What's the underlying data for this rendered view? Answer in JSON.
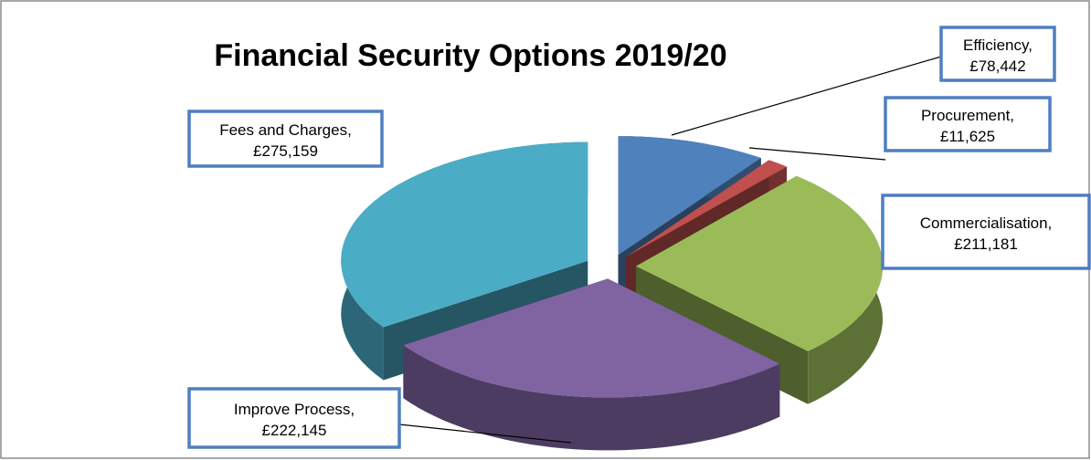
{
  "chart_data": {
    "type": "pie",
    "title": "Financial Security Options 2019/20",
    "categories": [
      "Efficiency,",
      "Procurement,",
      "Commercialisation,",
      "Improve Process,",
      "Fees and Charges,"
    ],
    "values": [
      78442,
      11625,
      211181,
      222145,
      275159
    ],
    "value_labels": [
      "£78,442",
      "£11,625",
      "£211,181",
      "£222,145",
      "£275,159"
    ],
    "colors": [
      "#4f81bd",
      "#c0504d",
      "#9bbb59",
      "#8064a2",
      "#4bacc6"
    ]
  }
}
